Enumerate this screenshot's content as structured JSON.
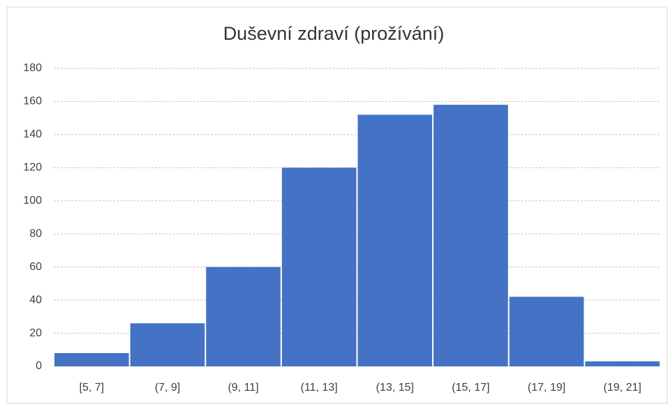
{
  "chart_data": {
    "type": "bar",
    "title": "Duševní zdraví (prožívání)",
    "categories": [
      "[5, 7]",
      "(7, 9]",
      "(9, 11]",
      "(11, 13]",
      "(13, 15]",
      "(15, 17]",
      "(17, 19]",
      "(19, 21]"
    ],
    "values": [
      8,
      26,
      60,
      120,
      152,
      158,
      42,
      3
    ],
    "color": "#4472c4",
    "ylim": [
      0,
      180
    ],
    "yticks": [
      0,
      20,
      40,
      60,
      80,
      100,
      120,
      140,
      160,
      180
    ],
    "grid": true
  }
}
